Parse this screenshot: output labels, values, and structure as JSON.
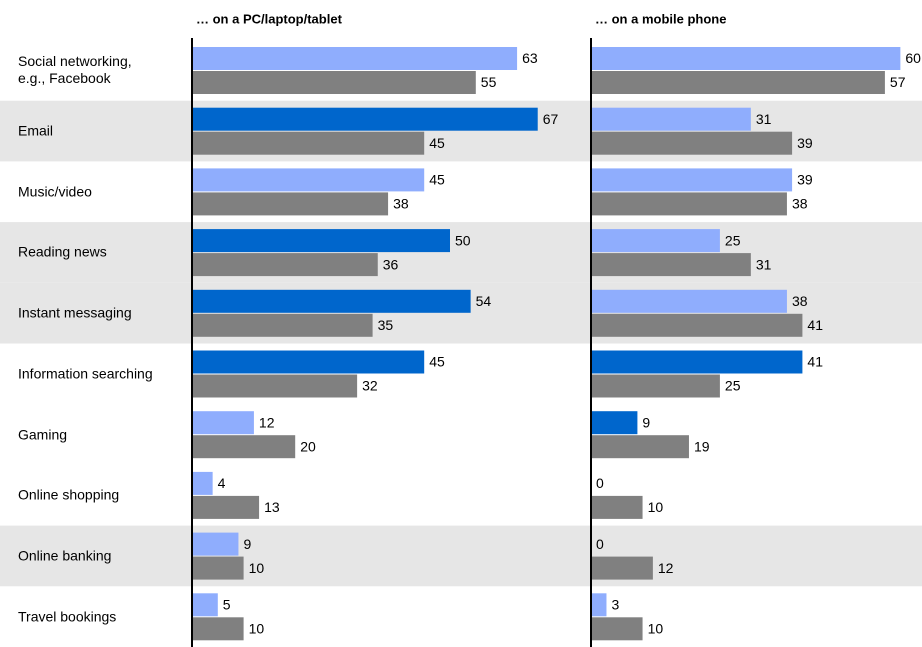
{
  "chart_data": [
    {
      "type": "bar",
      "orientation": "horizontal",
      "title": "… on a PC/laptop/tablet",
      "categories": [
        "Social networking,\ne.g., Facebook",
        "Email",
        "Music/video",
        "Reading news",
        "Instant messaging",
        "Information searching",
        "Gaming",
        "Online shopping",
        "Online banking",
        "Travel bookings"
      ],
      "xlim": [
        0,
        75
      ],
      "series": [
        {
          "colors": [
            "#8fadfd",
            "#0066cc",
            "#8fadfd",
            "#0066cc",
            "#0066cc",
            "#0066cc",
            "#8fadfd",
            "#8fadfd",
            "#8fadfd",
            "#8fadfd"
          ],
          "values": [
            63,
            67,
            45,
            50,
            54,
            45,
            12,
            4,
            9,
            5
          ]
        },
        {
          "color": "#808080",
          "values": [
            55,
            45,
            38,
            36,
            35,
            32,
            20,
            13,
            10,
            10
          ]
        }
      ]
    },
    {
      "type": "bar",
      "orientation": "horizontal",
      "title": "… on a mobile phone",
      "xlim": [
        0,
        64
      ],
      "series": [
        {
          "colors": [
            "#8fadfd",
            "#8fadfd",
            "#8fadfd",
            "#8fadfd",
            "#8fadfd",
            "#0066cc",
            "#0066cc",
            "#8fadfd",
            "#8fadfd",
            "#8fadfd"
          ],
          "values": [
            60,
            31,
            39,
            25,
            38,
            41,
            9,
            0,
            0,
            3
          ]
        },
        {
          "color": "#808080",
          "values": [
            57,
            39,
            38,
            31,
            41,
            25,
            19,
            10,
            12,
            10
          ]
        }
      ]
    }
  ]
}
